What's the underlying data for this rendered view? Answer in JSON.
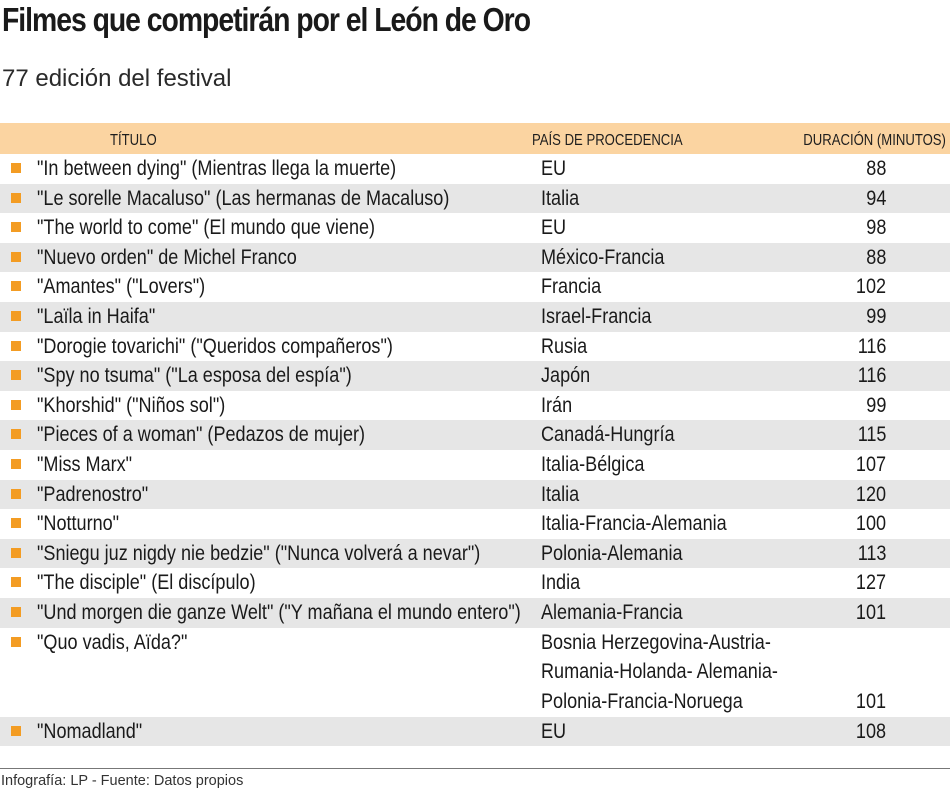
{
  "header": {
    "title": "Filmes que competirán por el León de Oro",
    "subtitle": "77 edición del festival"
  },
  "table": {
    "columns": [
      "TÍTULO",
      "PAÍS DE PROCEDENCIA",
      "DURACIÓN (MINUTOS)"
    ],
    "rows": [
      {
        "title": "\"In between dying\" (Mientras llega la muerte)",
        "country": "EU",
        "duration": "88"
      },
      {
        "title": "\"Le sorelle Macaluso\" (Las hermanas de Macaluso)",
        "country": "Italia",
        "duration": "94"
      },
      {
        "title": "\"The world to come\" (El mundo que viene)",
        "country": "EU",
        "duration": "98"
      },
      {
        "title": "\"Nuevo orden\" de Michel Franco",
        "country": "México-Francia",
        "duration": "88"
      },
      {
        "title": "\"Amantes\" (\"Lovers\")",
        "country": "Francia",
        "duration": "102"
      },
      {
        "title": "\"Laïla in Haifa\"",
        "country": "Israel-Francia",
        "duration": "99"
      },
      {
        "title": "\"Dorogie tovarichi\" (\"Queridos compañeros\")",
        "country": "Rusia",
        "duration": "116"
      },
      {
        "title": "\"Spy no tsuma\" (\"La esposa del espía\")",
        "country": "Japón",
        "duration": "116"
      },
      {
        "title": "\"Khorshid\" (\"Niños sol\")",
        "country": "Irán",
        "duration": "99"
      },
      {
        "title": "\"Pieces of a woman\" (Pedazos de mujer)",
        "country": "Canadá-Hungría",
        "duration": "115"
      },
      {
        "title": "\"Miss Marx\"",
        "country": "Italia-Bélgica",
        "duration": "107"
      },
      {
        "title": "\"Padrenostro\"",
        "country": "Italia",
        "duration": "120"
      },
      {
        "title": "\"Notturno\"",
        "country": "Italia-Francia-Alemania",
        "duration": "100"
      },
      {
        "title": "\"Sniegu juz nigdy nie bedzie\" (\"Nunca volverá a nevar\")",
        "country": "Polonia-Alemania",
        "duration": "113"
      },
      {
        "title": "\"The disciple\" (El discípulo)",
        "country": "India",
        "duration": "127"
      },
      {
        "title": "\"Und morgen die ganze Welt\" (\"Y mañana el mundo entero\")",
        "country": "Alemania-Francia",
        "duration": "101"
      },
      {
        "title": "\"Quo vadis, Aïda?\"",
        "country": "Bosnia Herzegovina-Austria-\nRumania-Holanda- Alemania-\nPolonia-Francia-Noruega",
        "duration": "101"
      },
      {
        "title": "\"Nomadland\"",
        "country": "EU",
        "duration": "108"
      }
    ]
  },
  "footer": {
    "credit": "Infografía: LP - Fuente: Datos propios"
  },
  "colors": {
    "header_bg": "#fbd4a1",
    "bullet": "#f39c23",
    "stripe": "#e6e6e6"
  }
}
